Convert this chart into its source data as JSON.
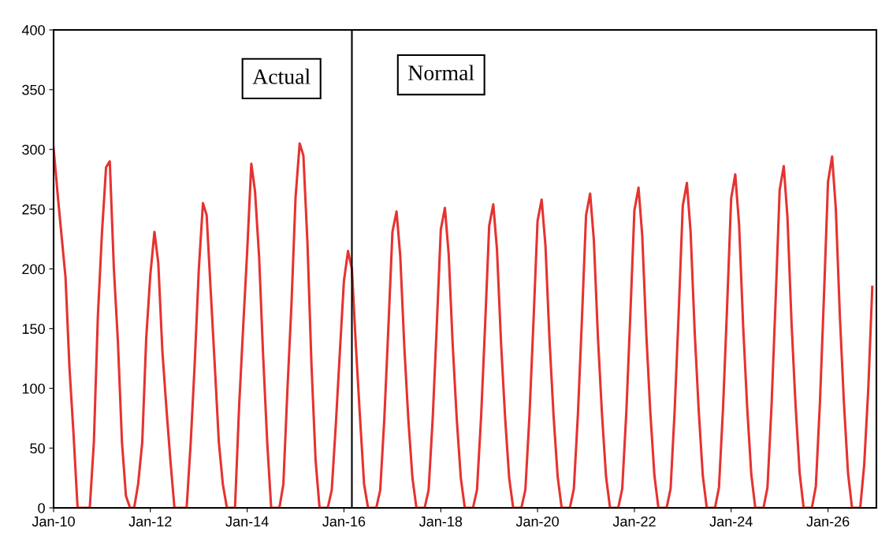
{
  "chart_data": {
    "type": "line",
    "annotations": [
      "Actual",
      "Normal"
    ],
    "x": [
      "2010-01",
      "2010-02",
      "2010-03",
      "2010-04",
      "2010-05",
      "2010-06",
      "2010-07",
      "2010-08",
      "2010-09",
      "2010-10",
      "2010-11",
      "2010-12",
      "2011-01",
      "2011-02",
      "2011-03",
      "2011-04",
      "2011-05",
      "2011-06",
      "2011-07",
      "2011-08",
      "2011-09",
      "2011-10",
      "2011-11",
      "2011-12",
      "2012-01",
      "2012-02",
      "2012-03",
      "2012-04",
      "2012-05",
      "2012-06",
      "2012-07",
      "2012-08",
      "2012-09",
      "2012-10",
      "2012-11",
      "2012-12",
      "2013-01",
      "2013-02",
      "2013-03",
      "2013-04",
      "2013-05",
      "2013-06",
      "2013-07",
      "2013-08",
      "2013-09",
      "2013-10",
      "2013-11",
      "2013-12",
      "2014-01",
      "2014-02",
      "2014-03",
      "2014-04",
      "2014-05",
      "2014-06",
      "2014-07",
      "2014-08",
      "2014-09",
      "2014-10",
      "2014-11",
      "2014-12",
      "2015-01",
      "2015-02",
      "2015-03",
      "2015-04",
      "2015-05",
      "2015-06",
      "2015-07",
      "2015-08",
      "2015-09",
      "2015-10",
      "2015-11",
      "2015-12",
      "2016-01",
      "2016-02",
      "2016-03",
      "2016-04",
      "2016-05",
      "2016-06",
      "2016-07",
      "2016-08",
      "2016-09",
      "2016-10",
      "2016-11",
      "2016-12",
      "2017-01",
      "2017-02",
      "2017-03",
      "2017-04",
      "2017-05",
      "2017-06",
      "2017-07",
      "2017-08",
      "2017-09",
      "2017-10",
      "2017-11",
      "2017-12",
      "2018-01",
      "2018-02",
      "2018-03",
      "2018-04",
      "2018-05",
      "2018-06",
      "2018-07",
      "2018-08",
      "2018-09",
      "2018-10",
      "2018-11",
      "2018-12",
      "2019-01",
      "2019-02",
      "2019-03",
      "2019-04",
      "2019-05",
      "2019-06",
      "2019-07",
      "2019-08",
      "2019-09",
      "2019-10",
      "2019-11",
      "2019-12",
      "2020-01",
      "2020-02",
      "2020-03",
      "2020-04",
      "2020-05",
      "2020-06",
      "2020-07",
      "2020-08",
      "2020-09",
      "2020-10",
      "2020-11",
      "2020-12",
      "2021-01",
      "2021-02",
      "2021-03",
      "2021-04",
      "2021-05",
      "2021-06",
      "2021-07",
      "2021-08",
      "2021-09",
      "2021-10",
      "2021-11",
      "2021-12",
      "2022-01",
      "2022-02",
      "2022-03",
      "2022-04",
      "2022-05",
      "2022-06",
      "2022-07",
      "2022-08",
      "2022-09",
      "2022-10",
      "2022-11",
      "2022-12",
      "2023-01",
      "2023-02",
      "2023-03",
      "2023-04",
      "2023-05",
      "2023-06",
      "2023-07",
      "2023-08",
      "2023-09",
      "2023-10",
      "2023-11",
      "2023-12",
      "2024-01",
      "2024-02",
      "2024-03",
      "2024-04",
      "2024-05",
      "2024-06",
      "2024-07",
      "2024-08",
      "2024-09",
      "2024-10",
      "2024-11",
      "2024-12",
      "2025-01",
      "2025-02",
      "2025-03",
      "2025-04",
      "2025-05",
      "2025-06",
      "2025-07",
      "2025-08",
      "2025-09",
      "2025-10",
      "2025-11",
      "2025-12",
      "2026-01",
      "2026-02",
      "2026-03",
      "2026-04",
      "2026-05",
      "2026-06",
      "2026-07",
      "2026-08",
      "2026-09",
      "2026-10",
      "2026-11",
      "2026-12"
    ],
    "series": [
      {
        "color": "#e53330",
        "values": [
          301,
          262,
          229,
          193,
          117,
          61,
          0,
          0,
          0,
          0,
          55,
          160,
          230,
          285,
          290,
          200,
          140,
          55,
          10,
          0,
          0,
          20,
          55,
          142,
          195,
          231,
          205,
          131,
          84,
          39,
          0,
          0,
          0,
          0,
          55,
          121,
          200,
          255,
          245,
          181,
          120,
          55,
          20,
          0,
          0,
          0,
          85,
          150,
          215,
          288,
          265,
          210,
          128,
          55,
          0,
          0,
          0,
          20,
          100,
          170,
          260,
          305,
          295,
          221,
          120,
          40,
          0,
          0,
          0,
          15,
          70,
          130,
          190,
          215,
          200,
          134,
          76,
          20,
          0,
          0,
          0,
          15,
          75,
          150,
          231,
          248,
          211,
          134,
          74,
          25,
          0,
          0,
          0,
          15,
          75,
          151,
          233,
          251,
          213,
          136,
          75,
          25,
          0,
          0,
          0,
          15,
          76,
          152,
          236,
          254,
          216,
          137,
          76,
          25,
          0,
          0,
          0,
          15,
          77,
          155,
          240,
          258,
          219,
          139,
          77,
          26,
          0,
          0,
          0,
          16,
          79,
          158,
          245,
          263,
          224,
          142,
          79,
          26,
          0,
          0,
          0,
          16,
          80,
          161,
          249,
          268,
          228,
          145,
          80,
          27,
          0,
          0,
          0,
          16,
          82,
          163,
          253,
          272,
          231,
          147,
          82,
          27,
          0,
          0,
          0,
          17,
          84,
          167,
          259,
          279,
          237,
          151,
          84,
          28,
          0,
          0,
          0,
          17,
          86,
          172,
          266,
          286,
          243,
          154,
          86,
          29,
          0,
          0,
          0,
          18,
          88,
          176,
          273,
          294,
          250,
          159,
          88,
          29,
          0,
          0,
          0,
          36,
          100,
          185
        ]
      }
    ],
    "xlim": [
      "2010-01",
      "2027-01"
    ],
    "xticks": [
      {
        "value": "2010-01",
        "label": "Jan-10"
      },
      {
        "value": "2012-01",
        "label": "Jan-12"
      },
      {
        "value": "2014-01",
        "label": "Jan-14"
      },
      {
        "value": "2016-01",
        "label": "Jan-16"
      },
      {
        "value": "2018-01",
        "label": "Jan-18"
      },
      {
        "value": "2020-01",
        "label": "Jan-20"
      },
      {
        "value": "2022-01",
        "label": "Jan-22"
      },
      {
        "value": "2024-01",
        "label": "Jan-24"
      },
      {
        "value": "2026-01",
        "label": "Jan-26"
      }
    ],
    "ylim": [
      0,
      400
    ],
    "yticks": [
      0,
      50,
      100,
      150,
      200,
      250,
      300,
      350,
      400
    ],
    "ref_lines": [
      {
        "axis": "x",
        "value": "2016-03",
        "color": "#000000"
      }
    ],
    "grid": false,
    "line_style": "solid",
    "marker": "none"
  }
}
